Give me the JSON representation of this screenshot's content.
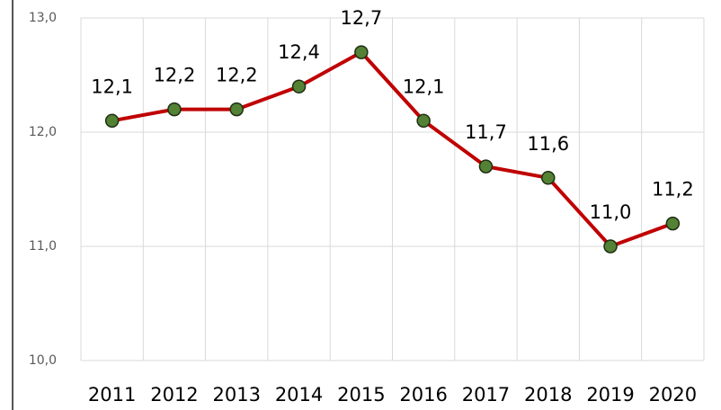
{
  "chart_data": {
    "type": "line",
    "categories": [
      "2011",
      "2012",
      "2013",
      "2014",
      "2015",
      "2016",
      "2017",
      "2018",
      "2019",
      "2020"
    ],
    "series": [
      {
        "color": "#c00000",
        "marker_color": "#548235",
        "values": [
          12.1,
          12.2,
          12.2,
          12.4,
          12.7,
          12.1,
          11.7,
          11.6,
          11.0,
          11.2
        ],
        "value_labels": [
          "12,1",
          "12,2",
          "12,2",
          "12,4",
          "12,7",
          "12,1",
          "11,7",
          "11,6",
          "11,0",
          "11,2"
        ]
      }
    ],
    "ylim": [
      10,
      13
    ],
    "yticks": [
      {
        "value": 10,
        "label": "10,0"
      },
      {
        "value": 11,
        "label": "11,0"
      },
      {
        "value": 12,
        "label": "12,0"
      },
      {
        "value": 13,
        "label": "13,0"
      }
    ],
    "grid": true
  }
}
